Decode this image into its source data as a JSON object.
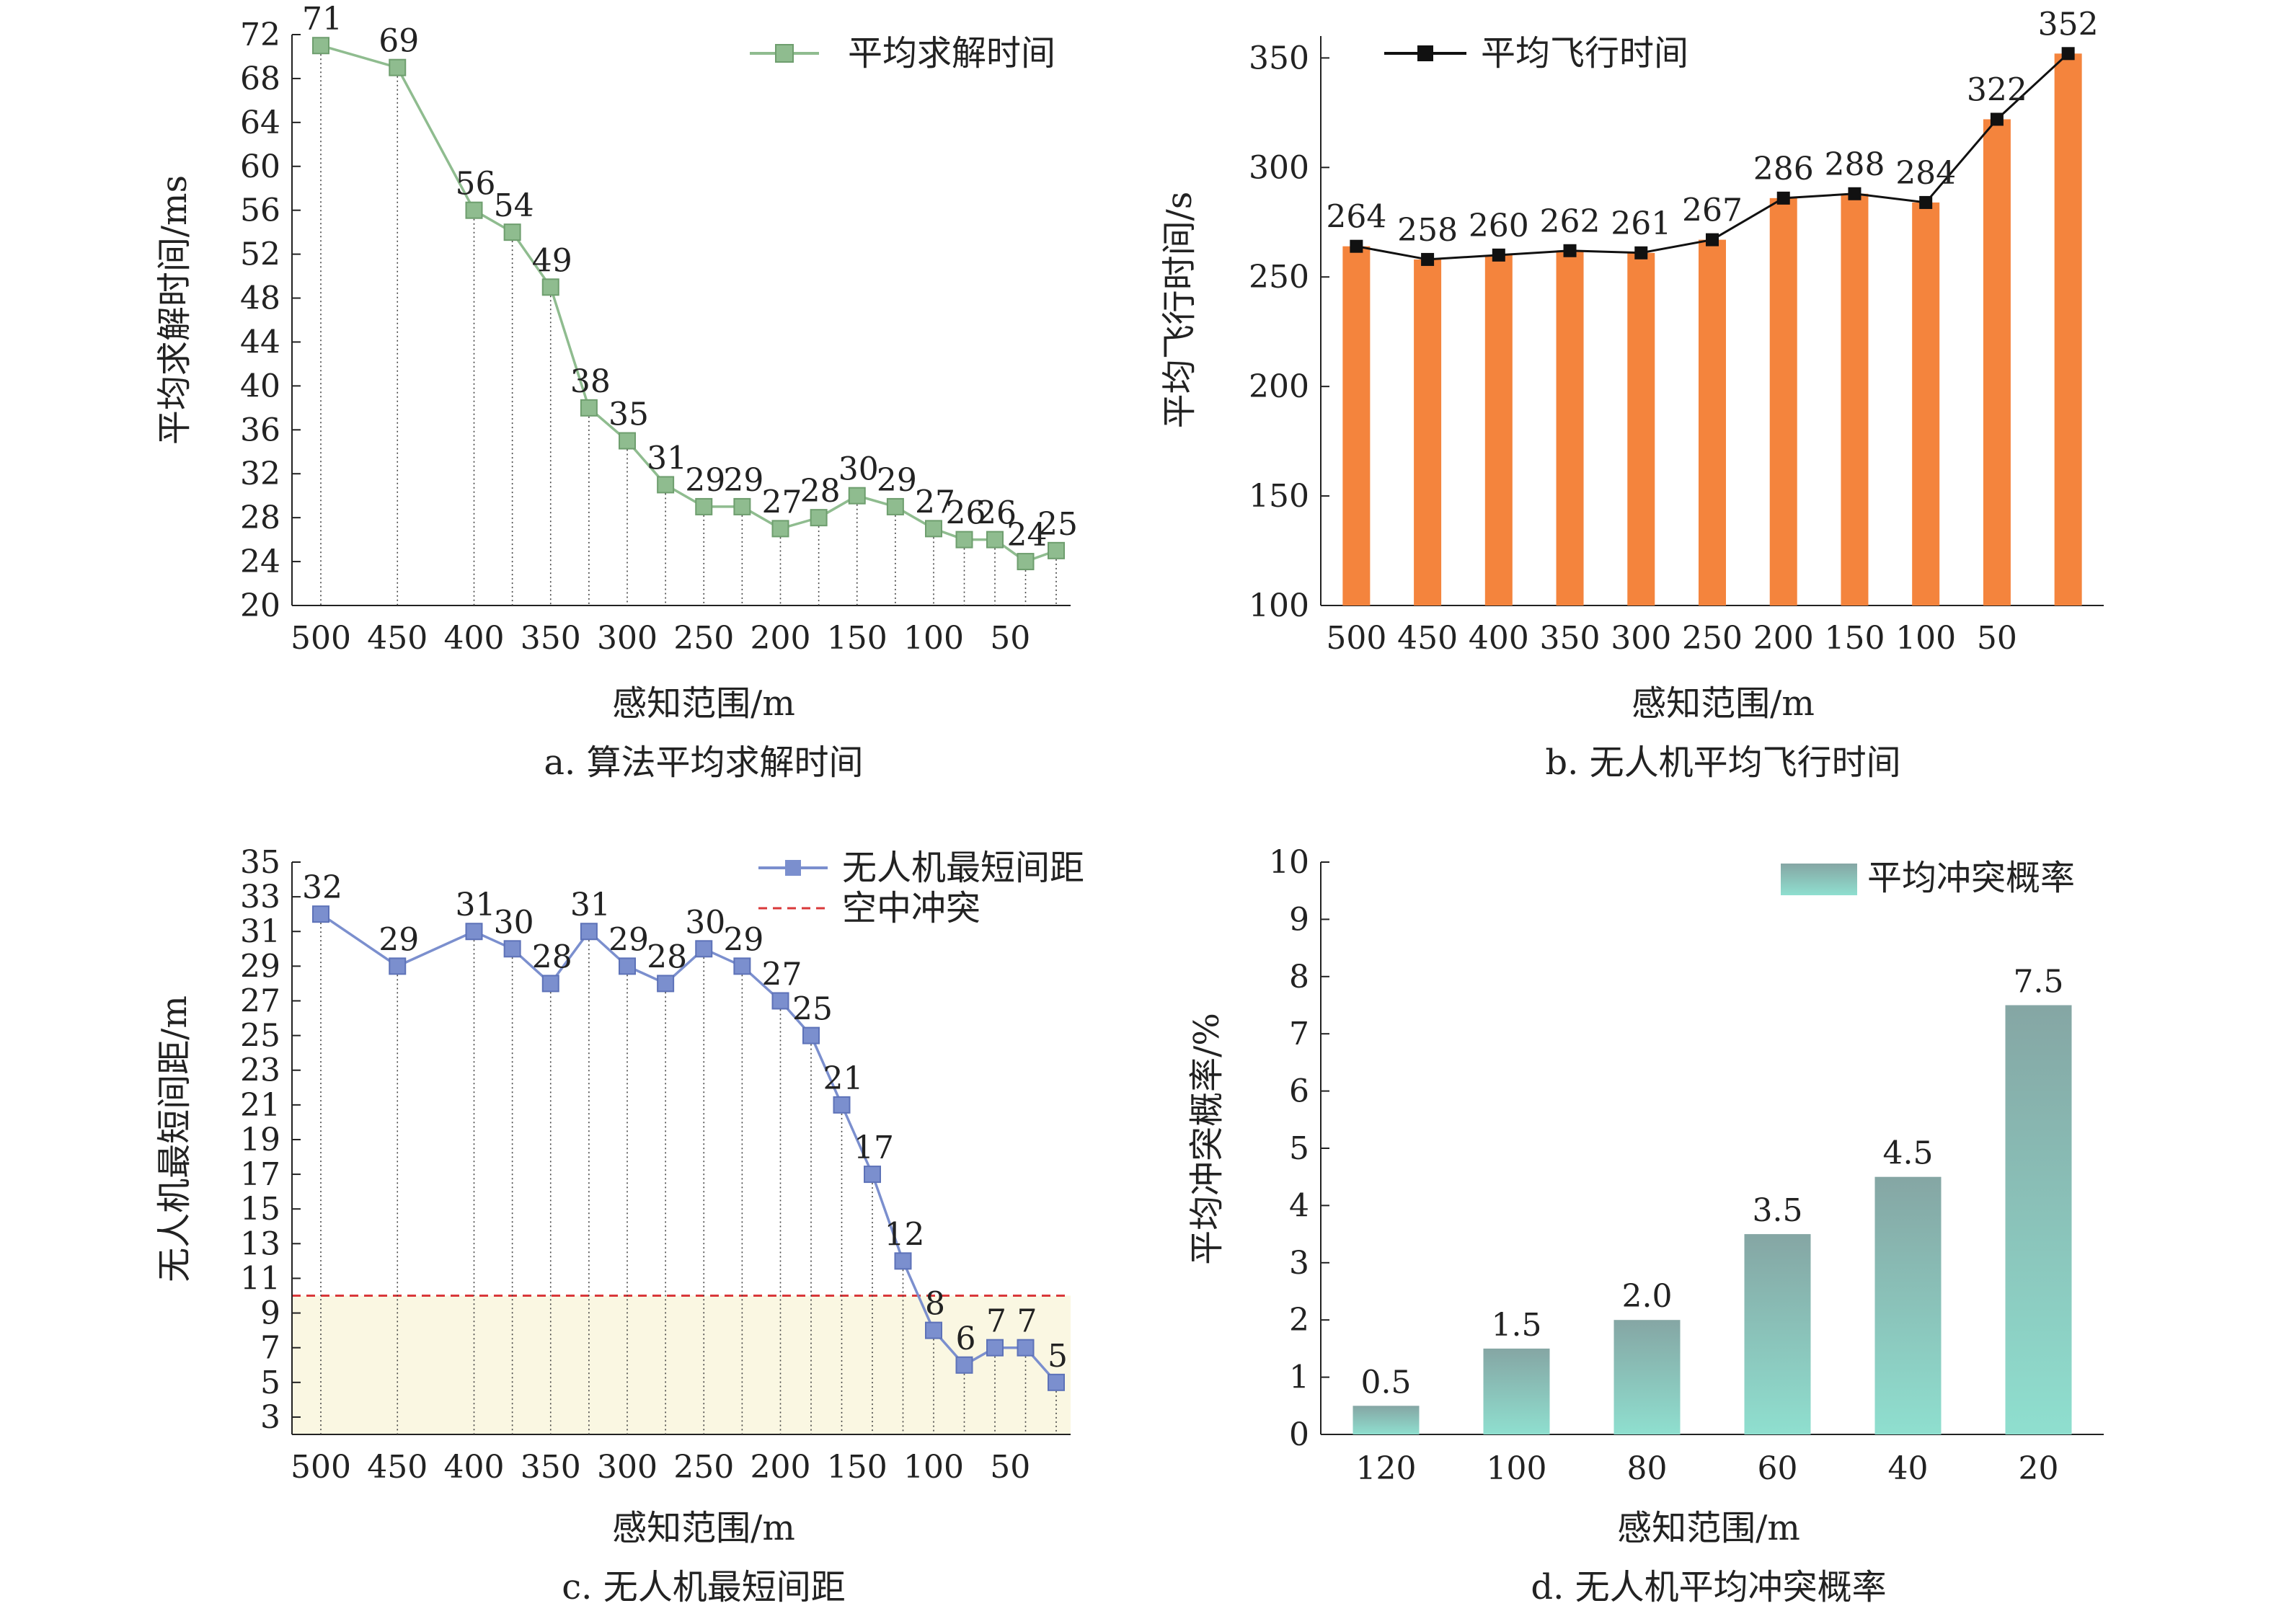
{
  "chart_data": [
    {
      "id": "a",
      "type": "line",
      "caption": "a. 算法平均求解时间",
      "xlabel": "感知范围/m",
      "ylabel": "平均求解时间/ms",
      "legend": "平均求解时间",
      "legend_position": "top-right",
      "color": "#8fbc8f",
      "ylim": [
        20,
        72
      ],
      "yticks": [
        20,
        24,
        28,
        32,
        36,
        40,
        44,
        48,
        52,
        56,
        60,
        64,
        68,
        72
      ],
      "x": [
        500,
        450,
        400,
        375,
        350,
        325,
        300,
        275,
        250,
        225,
        200,
        175,
        150,
        125,
        100,
        80,
        60,
        40,
        20
      ],
      "values": [
        71,
        69,
        56,
        54,
        49,
        38,
        35,
        31,
        29,
        29,
        27,
        28,
        30,
        29,
        27,
        26,
        26,
        24,
        25
      ],
      "xticks": [
        "500",
        "450",
        "400",
        "350",
        "300",
        "250",
        "200",
        "150",
        "100",
        "50"
      ],
      "dropline": true,
      "grid": false
    },
    {
      "id": "b",
      "type": "bar+line",
      "caption": "b. 无人机平均飞行时间",
      "xlabel": "感知范围/m",
      "ylabel": "平均飞行时间/s",
      "legend": "平均飞行时间",
      "legend_position": "top-left",
      "bar_color": "#f4843d",
      "line_color": "#111111",
      "ylim": [
        100,
        360
      ],
      "yticks": [
        100,
        150,
        200,
        250,
        300,
        350
      ],
      "categories": [
        "500",
        "450",
        "400",
        "350",
        "300",
        "250",
        "200",
        "150",
        "100",
        "50",
        ""
      ],
      "values": [
        264,
        258,
        260,
        262,
        261,
        267,
        286,
        288,
        284,
        322,
        352
      ],
      "grid": false
    },
    {
      "id": "c",
      "type": "line",
      "caption": "c. 无人机最短间距",
      "xlabel": "感知范围/m",
      "ylabel": "无人机最短间距/m",
      "legend": [
        "无人机最短间距",
        "空中冲突"
      ],
      "legend_position": "top-right",
      "color": "#7b8fce",
      "threshold": 10,
      "threshold_color": "#d9383a",
      "shade_color": "#faf7e2",
      "ylim": [
        2,
        35
      ],
      "yticks": [
        3,
        5,
        7,
        9,
        11,
        13,
        15,
        17,
        19,
        21,
        23,
        25,
        27,
        29,
        31,
        33,
        35
      ],
      "x": [
        500,
        450,
        400,
        375,
        350,
        325,
        300,
        275,
        250,
        225,
        200,
        180,
        160,
        140,
        120,
        100,
        80,
        60,
        40,
        20
      ],
      "values": [
        32,
        29,
        31,
        30,
        28,
        31,
        29,
        28,
        30,
        29,
        27,
        25,
        21,
        17,
        12,
        8,
        6,
        7,
        7,
        5
      ],
      "xticks": [
        "500",
        "450",
        "400",
        "350",
        "300",
        "250",
        "200",
        "150",
        "100",
        "50"
      ],
      "dropline": true,
      "grid": false
    },
    {
      "id": "d",
      "type": "bar",
      "caption": "d. 无人机平均冲突概率",
      "xlabel": "感知范围/m",
      "ylabel": "平均冲突概率/%",
      "legend": "平均冲突概率",
      "legend_position": "top-right",
      "gradient_top": "#85a6a4",
      "gradient_bottom": "#8fdfcf",
      "ylim": [
        0,
        10
      ],
      "yticks": [
        0,
        1,
        2,
        3,
        4,
        5,
        6,
        7,
        8,
        9,
        10
      ],
      "categories": [
        "120",
        "100",
        "80",
        "60",
        "40",
        "20"
      ],
      "values": [
        0.5,
        1.5,
        2.0,
        3.5,
        4.5,
        7.5
      ],
      "value_labels": [
        "0.5",
        "1.5",
        "2.0",
        "3.5",
        "4.5",
        "7.5"
      ],
      "grid": false
    }
  ]
}
